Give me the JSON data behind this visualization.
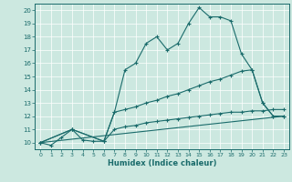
{
  "title": "",
  "xlabel": "Humidex (Indice chaleur)",
  "background_color": "#cce8e0",
  "line_color": "#1a6b6b",
  "xlim": [
    -0.5,
    23.5
  ],
  "ylim": [
    9.5,
    20.5
  ],
  "yticks": [
    10,
    11,
    12,
    13,
    14,
    15,
    16,
    17,
    18,
    19,
    20
  ],
  "xticks": [
    0,
    1,
    2,
    3,
    4,
    5,
    6,
    7,
    8,
    9,
    10,
    11,
    12,
    13,
    14,
    15,
    16,
    17,
    18,
    19,
    20,
    21,
    22,
    23
  ],
  "line1_x": [
    0,
    1,
    2,
    3,
    4,
    5,
    6,
    7,
    8,
    9,
    10,
    11,
    12,
    13,
    14,
    15,
    16,
    17,
    18,
    19,
    20,
    21,
    22,
    23
  ],
  "line1_y": [
    10.0,
    9.8,
    10.4,
    11.0,
    10.2,
    10.1,
    10.1,
    12.3,
    15.5,
    16.0,
    17.5,
    18.0,
    17.0,
    17.5,
    19.0,
    20.2,
    19.5,
    19.5,
    19.2,
    16.7,
    15.5,
    13.0,
    12.0,
    12.0
  ],
  "line2_x": [
    0,
    3,
    6,
    7,
    8,
    9,
    10,
    11,
    12,
    13,
    14,
    15,
    16,
    17,
    18,
    19,
    20,
    21,
    22,
    23
  ],
  "line2_y": [
    10.0,
    11.0,
    10.1,
    12.3,
    12.5,
    12.7,
    13.0,
    13.2,
    13.5,
    13.7,
    14.0,
    14.3,
    14.6,
    14.8,
    15.1,
    15.4,
    15.5,
    13.0,
    12.0,
    12.0
  ],
  "line3_x": [
    0,
    3,
    6,
    7,
    8,
    9,
    10,
    11,
    12,
    13,
    14,
    15,
    16,
    17,
    18,
    19,
    20,
    21,
    22,
    23
  ],
  "line3_y": [
    10.0,
    11.0,
    10.1,
    11.0,
    11.2,
    11.3,
    11.5,
    11.6,
    11.7,
    11.8,
    11.9,
    12.0,
    12.1,
    12.2,
    12.3,
    12.3,
    12.4,
    12.4,
    12.5,
    12.5
  ],
  "line4_x": [
    0,
    23
  ],
  "line4_y": [
    10.0,
    12.0
  ]
}
